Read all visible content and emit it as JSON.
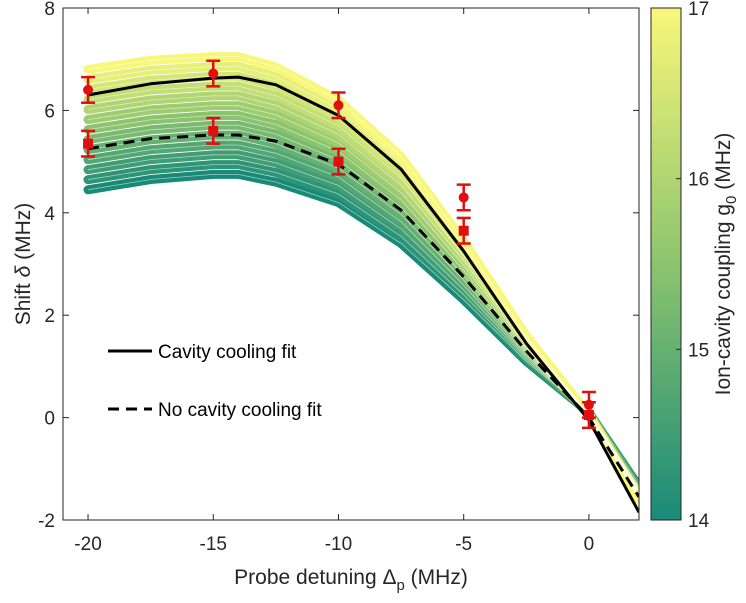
{
  "chart_data": {
    "type": "line",
    "title": "",
    "xlabel": "Probe detuning Δ_p (MHz)",
    "xlabel_main": "Probe detuning Δ",
    "xlabel_sub": "p",
    "xlabel_tail": " (MHz)",
    "ylabel": "Shift δ (MHz)",
    "ylabel_main": "Shift ",
    "ylabel_sym": "δ",
    "ylabel_tail": " (MHz)",
    "xlim": [
      -21,
      2
    ],
    "ylim": [
      -2,
      8
    ],
    "xticks": [
      "-20",
      "-15",
      "-10",
      "-5",
      "0"
    ],
    "xtick_values": [
      -20,
      -15,
      -10,
      -5,
      0
    ],
    "yticks": [
      "-2",
      "0",
      "2",
      "4",
      "6",
      "8"
    ],
    "ytick_values": [
      -2,
      0,
      2,
      4,
      6,
      8
    ],
    "grid": false,
    "legend_position": "left",
    "colorbar": {
      "label": "Ion-cavity coupling g_0 (MHz)",
      "label_main": "Ion-cavity coupling g",
      "label_sub": "0",
      "label_tail": " (MHz)",
      "range": [
        14,
        17
      ],
      "ticks": [
        "14",
        "15",
        "16",
        "17"
      ],
      "tick_values": [
        14,
        15,
        16,
        17
      ],
      "colormap": "summer-like teal to yellow",
      "color_low": "#1a8a78",
      "color_mid": "#8cc46e",
      "color_high": "#f8f77a"
    },
    "model_family": {
      "x": [
        -20,
        -17.5,
        -15,
        -14,
        -12.5,
        -10,
        -7.5,
        -5,
        -2.5,
        0,
        2
      ],
      "g0_values": [
        14,
        14.25,
        14.5,
        14.75,
        15,
        15.25,
        15.5,
        15.75,
        16,
        16.25,
        16.5,
        16.75,
        17
      ],
      "lowest_curve": [
        4.45,
        4.65,
        4.75,
        4.75,
        4.6,
        4.2,
        3.4,
        2.3,
        1.1,
        0.1,
        -1.35
      ],
      "highest_curve": [
        6.8,
        6.98,
        7.05,
        7.05,
        6.85,
        6.2,
        5.1,
        3.45,
        1.6,
        0.05,
        -1.6
      ]
    },
    "series": [
      {
        "name": "Cavity cooling fit",
        "style": "solid",
        "color": "#000000",
        "x": [
          -20,
          -17.5,
          -15,
          -14,
          -12.5,
          -10,
          -7.5,
          -5,
          -2.5,
          0,
          2
        ],
        "y": [
          6.3,
          6.52,
          6.63,
          6.65,
          6.5,
          5.9,
          4.85,
          3.25,
          1.45,
          -0.05,
          -1.85
        ]
      },
      {
        "name": "No cavity cooling fit",
        "style": "dashed",
        "color": "#000000",
        "x": [
          -20,
          -17.5,
          -15,
          -14,
          -12.5,
          -10,
          -7.5,
          -5,
          -2.5,
          0,
          2
        ],
        "y": [
          5.25,
          5.45,
          5.52,
          5.52,
          5.4,
          4.95,
          4.05,
          2.75,
          1.3,
          0.0,
          -1.55
        ]
      }
    ],
    "measurements": [
      {
        "marker": "circle",
        "color": "#e01010",
        "x": [
          -20,
          -15,
          -10,
          -5,
          0
        ],
        "y": [
          6.4,
          6.72,
          6.1,
          4.3,
          0.25
        ],
        "yerr": [
          0.25,
          0.25,
          0.25,
          0.25,
          0.25
        ]
      },
      {
        "marker": "square",
        "color": "#e01010",
        "x": [
          -20,
          -15,
          -10,
          -5,
          0
        ],
        "y": [
          5.35,
          5.6,
          5.0,
          3.65,
          0.05
        ],
        "yerr": [
          0.25,
          0.25,
          0.25,
          0.25,
          0.25
        ]
      }
    ]
  }
}
